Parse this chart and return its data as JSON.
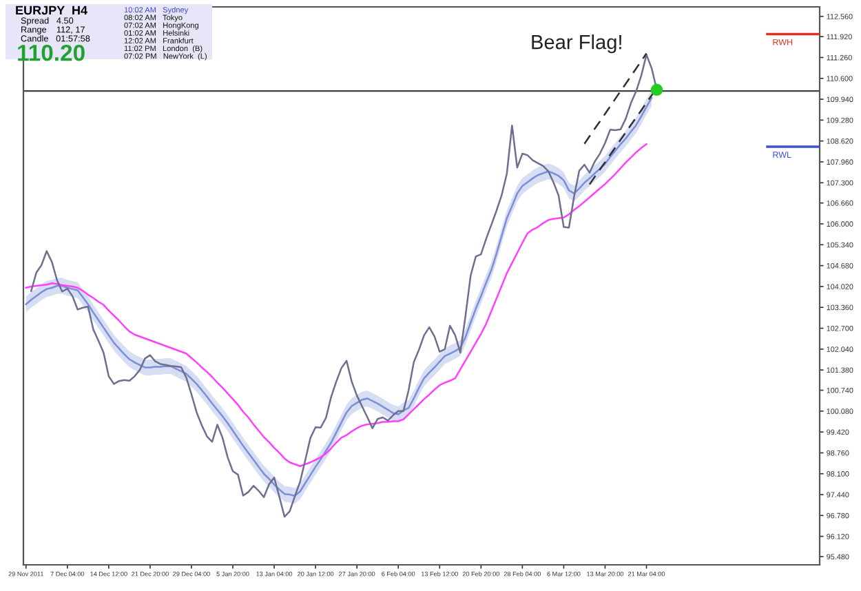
{
  "chart_data": {
    "type": "line",
    "title": "EURJPY  H4",
    "annotations": [
      "Spread   4.50",
      "Range    112, 17",
      "Candle   01:57:58",
      "110.20",
      "10:02 AM   Sydney",
      "08:02 AM   Tokyo",
      "07:02 AM   HongKong",
      "01:02 AM   Helsinki",
      "12:02 AM   Frankfurt",
      "11:02 PM   London  (B)",
      "07:02 PM   NewYork  (L)",
      "Bear Flag!"
    ],
    "categories": [
      "29 Nov 2011",
      null,
      null,
      null,
      null,
      null,
      null,
      null,
      "7 Dec 04:00",
      null,
      null,
      null,
      null,
      null,
      null,
      null,
      "14 Dec 12:00",
      null,
      null,
      null,
      null,
      null,
      null,
      null,
      "21 Dec 20:00",
      null,
      null,
      null,
      null,
      null,
      null,
      null,
      "29 Dec 04:00",
      null,
      null,
      null,
      null,
      null,
      null,
      null,
      "5 Jan 20:00",
      null,
      null,
      null,
      null,
      null,
      null,
      null,
      "13 Jan 04:00",
      null,
      null,
      null,
      null,
      null,
      null,
      null,
      "20 Jan 12:00",
      null,
      null,
      null,
      null,
      null,
      null,
      null,
      "27 Jan 20:00",
      null,
      null,
      null,
      null,
      null,
      null,
      null,
      "6 Feb 04:00",
      null,
      null,
      null,
      null,
      null,
      null,
      null,
      "13 Feb 12:00",
      null,
      null,
      null,
      null,
      null,
      null,
      null,
      "20 Feb 20:00",
      null,
      null,
      null,
      null,
      null,
      null,
      null,
      "28 Feb 04:00",
      null,
      null,
      null,
      null,
      null,
      null,
      null,
      "6 Mar 12:00",
      null,
      null,
      null,
      null,
      null,
      null,
      null,
      "13 Mar 20:00",
      null,
      null,
      null,
      null,
      null,
      null,
      null,
      "21 Mar 04:00",
      null,
      null,
      null,
      null,
      null,
      null,
      null,
      null,
      null,
      null,
      null,
      null,
      null,
      null,
      null,
      null,
      null,
      null,
      null,
      null,
      null,
      null,
      null,
      null,
      null,
      null,
      null,
      null,
      null,
      null,
      null,
      null,
      null
    ],
    "ylim": [
      95.22,
      112.86
    ],
    "yticks": [
      {
        "value": 95.48,
        "label": "95.480"
      },
      {
        "value": 96.12,
        "label": "96.120"
      },
      {
        "value": 96.78,
        "label": "96.780"
      },
      {
        "value": 97.44,
        "label": "97.440"
      },
      {
        "value": 98.1,
        "label": "98.100"
      },
      {
        "value": 98.76,
        "label": "98.760"
      },
      {
        "value": 99.42,
        "label": "99.420"
      },
      {
        "value": 100.08,
        "label": "100.080"
      },
      {
        "value": 100.74,
        "label": "100.740"
      },
      {
        "value": 101.38,
        "label": "101.380"
      },
      {
        "value": 102.04,
        "label": "102.040"
      },
      {
        "value": 102.7,
        "label": "102.700"
      },
      {
        "value": 103.36,
        "label": "103.360"
      },
      {
        "value": 104.02,
        "label": "104.020"
      },
      {
        "value": 104.68,
        "label": "104.680"
      },
      {
        "value": 105.34,
        "label": "105.340"
      },
      {
        "value": 106.0,
        "label": "106.000"
      },
      {
        "value": 106.66,
        "label": "106.660"
      },
      {
        "value": 107.3,
        "label": "107.300"
      },
      {
        "value": 107.96,
        "label": "107.960"
      },
      {
        "value": 108.62,
        "label": "108.620"
      },
      {
        "value": 109.28,
        "label": "109.280"
      },
      {
        "value": 109.94,
        "label": "109.940"
      },
      {
        "value": 110.6,
        "label": "110.600"
      },
      {
        "value": 111.26,
        "label": "111.260"
      },
      {
        "value": 111.92,
        "label": "111.920"
      },
      {
        "value": 112.56,
        "label": "112.560"
      }
    ],
    "grid": false,
    "series": [
      {
        "color": "#7b8fd8",
        "values": [
          103.46,
          103.6,
          103.72,
          103.84,
          103.94,
          103.98,
          104.04,
          104.04,
          103.98,
          103.94,
          103.9,
          103.68,
          103.46,
          103.2,
          102.96,
          102.72,
          102.48,
          102.24,
          102.06,
          101.88,
          101.72,
          101.62,
          101.54,
          101.46,
          101.46,
          101.48,
          101.48,
          101.5,
          101.5,
          101.42,
          101.34,
          101.26,
          101.1,
          100.94,
          100.74,
          100.54,
          100.32,
          100.12,
          99.92,
          99.7,
          99.46,
          99.22,
          98.98,
          98.76,
          98.54,
          98.32,
          98.1,
          97.94,
          97.76,
          97.6,
          97.46,
          97.44,
          97.4,
          97.54,
          97.8,
          98.06,
          98.32,
          98.56,
          98.82,
          99.08,
          99.4,
          99.72,
          100.04,
          100.24,
          100.34,
          100.44,
          100.48,
          100.4,
          100.32,
          100.22,
          100.12,
          100.02,
          99.98,
          100.1,
          100.18,
          100.48,
          100.82,
          101.12,
          101.3,
          101.46,
          101.64,
          101.82,
          101.9,
          101.98,
          102.08,
          102.42,
          102.88,
          103.32,
          103.72,
          104.14,
          104.54,
          105.06,
          105.62,
          106.18,
          106.56,
          106.96,
          107.2,
          107.32,
          107.44,
          107.54,
          107.6,
          107.66,
          107.6,
          107.52,
          107.38,
          107.06,
          106.96,
          107.12,
          107.3,
          107.44,
          107.6,
          107.74,
          107.9,
          108.12,
          108.32,
          108.52,
          108.7,
          108.92,
          109.12,
          109.4,
          109.7,
          109.98,
          null,
          null,
          null,
          null,
          null,
          null,
          null,
          null,
          null,
          null,
          null,
          null,
          null,
          null,
          null,
          null,
          null,
          null,
          null,
          null,
          null,
          null,
          null,
          null,
          null,
          null,
          null,
          null,
          null,
          null,
          null,
          null
        ],
        "lower": [
          103.21,
          103.35,
          103.47,
          103.59,
          103.69,
          103.73,
          103.79,
          103.79,
          103.73,
          103.69,
          103.65,
          103.43,
          103.21,
          102.95,
          102.71,
          102.47,
          102.23,
          101.99,
          101.81,
          101.63,
          101.47,
          101.37,
          101.29,
          101.21,
          101.21,
          101.23,
          101.23,
          101.25,
          101.25,
          101.17,
          101.09,
          101.01,
          100.85,
          100.69,
          100.49,
          100.29,
          100.07,
          99.87,
          99.67,
          99.45,
          99.21,
          98.97,
          98.73,
          98.51,
          98.29,
          98.07,
          97.85,
          97.69,
          97.51,
          97.35,
          97.21,
          97.19,
          97.15,
          97.29,
          97.55,
          97.81,
          98.07,
          98.31,
          98.57,
          98.83,
          99.15,
          99.47,
          99.79,
          99.99,
          100.09,
          100.19,
          100.23,
          100.15,
          100.07,
          99.97,
          99.87,
          99.77,
          99.73,
          99.85,
          99.93,
          100.23,
          100.57,
          100.87,
          101.05,
          101.21,
          101.39,
          101.57,
          101.65,
          101.73,
          101.83,
          102.17,
          102.63,
          103.07,
          103.47,
          103.89,
          104.29,
          104.81,
          105.37,
          105.93,
          106.31,
          106.71,
          106.95,
          107.07,
          107.19,
          107.29,
          107.35,
          107.41,
          107.35,
          107.27,
          107.13,
          106.81,
          106.71,
          106.87,
          107.05,
          107.19,
          107.35,
          107.49,
          107.65,
          107.87,
          108.07,
          108.27,
          108.45,
          108.67,
          108.87,
          109.15,
          109.45,
          109.73,
          null,
          null,
          null,
          null,
          null,
          null,
          null,
          null,
          null,
          null,
          null,
          null,
          null,
          null,
          null,
          null,
          null,
          null,
          null,
          null,
          null,
          null,
          null,
          null,
          null,
          null,
          null,
          null,
          null,
          null,
          null,
          null
        ],
        "upper": [
          103.71,
          103.85,
          103.97,
          104.09,
          104.19,
          104.23,
          104.29,
          104.29,
          104.23,
          104.19,
          104.15,
          103.93,
          103.71,
          103.45,
          103.21,
          102.97,
          102.73,
          102.49,
          102.31,
          102.13,
          101.97,
          101.87,
          101.79,
          101.71,
          101.71,
          101.73,
          101.73,
          101.75,
          101.75,
          101.67,
          101.59,
          101.51,
          101.35,
          101.19,
          100.99,
          100.79,
          100.57,
          100.37,
          100.17,
          99.95,
          99.71,
          99.47,
          99.23,
          99.01,
          98.79,
          98.57,
          98.35,
          98.19,
          98.01,
          97.85,
          97.71,
          97.69,
          97.65,
          97.79,
          98.05,
          98.31,
          98.57,
          98.81,
          99.07,
          99.33,
          99.65,
          99.97,
          100.29,
          100.49,
          100.59,
          100.69,
          100.73,
          100.65,
          100.57,
          100.47,
          100.37,
          100.27,
          100.23,
          100.35,
          100.43,
          100.73,
          101.07,
          101.37,
          101.55,
          101.71,
          101.89,
          102.07,
          102.15,
          102.23,
          102.33,
          102.67,
          103.13,
          103.57,
          103.97,
          104.39,
          104.79,
          105.31,
          105.87,
          106.43,
          106.81,
          107.21,
          107.45,
          107.57,
          107.69,
          107.79,
          107.85,
          107.91,
          107.85,
          107.77,
          107.63,
          107.31,
          107.21,
          107.37,
          107.55,
          107.69,
          107.85,
          107.99,
          108.15,
          108.37,
          108.57,
          108.77,
          108.95,
          109.17,
          109.37,
          109.65,
          109.95,
          110.23,
          null,
          null,
          null,
          null,
          null,
          null,
          null,
          null,
          null,
          null,
          null,
          null,
          null,
          null,
          null,
          null,
          null,
          null,
          null,
          null,
          null,
          null,
          null,
          null,
          null,
          null,
          null,
          null,
          null,
          null,
          null,
          null
        ]
      },
      {
        "color": "#ff40ff",
        "values": [
          103.98,
          104.02,
          104.04,
          104.06,
          104.08,
          104.12,
          104.1,
          104.06,
          104.04,
          104.02,
          103.98,
          103.88,
          103.76,
          103.66,
          103.54,
          103.44,
          103.26,
          103.1,
          102.94,
          102.76,
          102.6,
          102.5,
          102.44,
          102.38,
          102.32,
          102.26,
          102.2,
          102.14,
          102.08,
          102.02,
          101.96,
          101.9,
          101.76,
          101.62,
          101.46,
          101.32,
          101.16,
          100.98,
          100.82,
          100.64,
          100.46,
          100.28,
          100.06,
          99.88,
          99.66,
          99.46,
          99.26,
          99.1,
          98.92,
          98.76,
          98.58,
          98.46,
          98.4,
          98.34,
          98.4,
          98.46,
          98.54,
          98.62,
          98.74,
          98.9,
          99.08,
          99.24,
          99.32,
          99.44,
          99.54,
          99.62,
          99.66,
          99.68,
          99.7,
          99.74,
          99.74,
          99.76,
          99.76,
          99.82,
          99.98,
          100.14,
          100.3,
          100.46,
          100.6,
          100.76,
          100.9,
          100.98,
          101.04,
          101.12,
          101.4,
          101.68,
          101.96,
          102.24,
          102.52,
          102.84,
          103.24,
          103.64,
          104.04,
          104.44,
          104.76,
          105.08,
          105.4,
          105.7,
          105.82,
          105.9,
          106.02,
          106.12,
          106.16,
          106.18,
          106.2,
          106.3,
          106.44,
          106.56,
          106.7,
          106.84,
          106.98,
          107.12,
          107.26,
          107.42,
          107.58,
          107.76,
          107.94,
          108.1,
          108.26,
          108.4,
          108.52,
          null,
          null,
          null,
          null,
          null,
          null,
          null,
          null,
          null,
          null,
          null,
          null,
          null,
          null,
          null,
          null,
          null,
          null,
          null,
          null,
          null,
          null,
          null,
          null,
          null,
          null,
          null,
          null,
          null,
          null,
          null,
          null,
          null
        ]
      },
      {
        "color": "#6e6e90",
        "values": [
          null,
          103.88,
          104.46,
          104.7,
          105.14,
          104.8,
          104.22,
          103.86,
          103.95,
          103.71,
          103.29,
          103.35,
          103.39,
          102.67,
          102.31,
          101.93,
          101.18,
          100.94,
          101.03,
          101.06,
          101.04,
          101.18,
          101.38,
          101.74,
          101.85,
          101.65,
          101.57,
          101.54,
          101.51,
          101.49,
          101.47,
          101.14,
          100.61,
          100.04,
          99.63,
          99.28,
          99.11,
          99.65,
          99.24,
          98.62,
          98.18,
          98.07,
          97.41,
          97.52,
          97.72,
          97.56,
          97.36,
          97.76,
          97.98,
          97.37,
          96.74,
          96.91,
          97.39,
          97.84,
          98.52,
          99.23,
          99.57,
          99.56,
          99.86,
          100.52,
          101.01,
          101.44,
          101.67,
          101.01,
          100.57,
          100.23,
          99.89,
          99.54,
          99.83,
          99.88,
          99.78,
          99.95,
          100.08,
          100.08,
          100.74,
          101.63,
          102.02,
          102.48,
          102.73,
          102.44,
          101.96,
          102.04,
          102.78,
          102.48,
          101.93,
          103.09,
          104.37,
          104.97,
          105.04,
          105.53,
          105.97,
          106.42,
          106.91,
          107.59,
          109.11,
          107.78,
          108.22,
          108.17,
          108.01,
          107.92,
          107.83,
          107.67,
          107.32,
          106.9,
          105.9,
          105.88,
          106.86,
          107.68,
          107.87,
          107.62,
          107.97,
          108.22,
          108.56,
          108.98,
          108.96,
          108.99,
          109.33,
          109.82,
          110.19,
          110.69,
          111.35,
          110.92,
          110.24,
          null,
          null,
          null,
          null,
          null,
          null,
          null,
          null,
          null,
          null,
          null,
          null,
          null,
          null,
          null,
          null,
          null,
          null,
          null,
          null,
          null,
          null,
          null,
          null,
          null,
          null,
          null,
          null,
          null,
          null,
          null
        ]
      },
      {
        "color": "#303030",
        "line_style": "dashed",
        "values": [
          null,
          null,
          null,
          null,
          null,
          null,
          null,
          null,
          null,
          null,
          null,
          null,
          null,
          null,
          null,
          null,
          null,
          null,
          null,
          null,
          null,
          null,
          null,
          null,
          null,
          null,
          null,
          null,
          null,
          null,
          null,
          null,
          null,
          null,
          null,
          null,
          null,
          null,
          null,
          null,
          null,
          null,
          null,
          null,
          null,
          null,
          null,
          null,
          null,
          null,
          null,
          null,
          null,
          null,
          null,
          null,
          null,
          null,
          null,
          null,
          null,
          null,
          null,
          null,
          null,
          null,
          null,
          null,
          null,
          null,
          null,
          null,
          null,
          null,
          null,
          null,
          null,
          null,
          null,
          null,
          null,
          null,
          null,
          null,
          null,
          null,
          null,
          null,
          null,
          null,
          null,
          null,
          null,
          null,
          null,
          null,
          null,
          null,
          null,
          null,
          null,
          null,
          null,
          null,
          null,
          null,
          null,
          null,
          108.53,
          108.77,
          109.01,
          109.24,
          109.48,
          109.72,
          109.96,
          110.2,
          110.43,
          110.67,
          110.91,
          111.15,
          111.39,
          null,
          null,
          null,
          null,
          null,
          null,
          null,
          null,
          null,
          null,
          null,
          null,
          null,
          null,
          null,
          null,
          null,
          null,
          null,
          null,
          null,
          null,
          null,
          null,
          null,
          null,
          null,
          null,
          null,
          null,
          null,
          null,
          null
        ]
      },
      {
        "color": "#303030",
        "line_style": "dashed",
        "values": [
          null,
          null,
          null,
          null,
          null,
          null,
          null,
          null,
          null,
          null,
          null,
          null,
          null,
          null,
          null,
          null,
          null,
          null,
          null,
          null,
          null,
          null,
          null,
          null,
          null,
          null,
          null,
          null,
          null,
          null,
          null,
          null,
          null,
          null,
          null,
          null,
          null,
          null,
          null,
          null,
          null,
          null,
          null,
          null,
          null,
          null,
          null,
          null,
          null,
          null,
          null,
          null,
          null,
          null,
          null,
          null,
          null,
          null,
          null,
          null,
          null,
          null,
          null,
          null,
          null,
          null,
          null,
          null,
          null,
          null,
          null,
          null,
          null,
          null,
          null,
          null,
          null,
          null,
          null,
          null,
          null,
          null,
          null,
          null,
          null,
          null,
          null,
          null,
          null,
          null,
          null,
          null,
          null,
          null,
          null,
          null,
          null,
          null,
          null,
          null,
          null,
          null,
          null,
          null,
          null,
          null,
          null,
          null,
          null,
          107.25,
          107.49,
          107.72,
          107.95,
          108.19,
          108.42,
          108.66,
          108.89,
          109.13,
          109.36,
          109.59,
          109.83,
          110.06,
          110.3,
          null,
          null,
          null,
          null,
          null,
          null,
          null,
          null,
          null,
          null,
          null,
          null,
          null,
          null,
          null,
          null,
          null,
          null,
          null,
          null,
          null,
          null,
          null,
          null,
          null,
          null,
          null,
          null,
          null,
          null,
          null
        ]
      },
      {
        "type": "scatter",
        "color": "#22cc22",
        "marker": "circle",
        "values": [
          null,
          null,
          null,
          null,
          null,
          null,
          null,
          null,
          null,
          null,
          null,
          null,
          null,
          null,
          null,
          null,
          null,
          null,
          null,
          null,
          null,
          null,
          null,
          null,
          null,
          null,
          null,
          null,
          null,
          null,
          null,
          null,
          null,
          null,
          null,
          null,
          null,
          null,
          null,
          null,
          null,
          null,
          null,
          null,
          null,
          null,
          null,
          null,
          null,
          null,
          null,
          null,
          null,
          null,
          null,
          null,
          null,
          null,
          null,
          null,
          null,
          null,
          null,
          null,
          null,
          null,
          null,
          null,
          null,
          null,
          null,
          null,
          null,
          null,
          null,
          null,
          null,
          null,
          null,
          null,
          null,
          null,
          null,
          null,
          null,
          null,
          null,
          null,
          null,
          null,
          null,
          null,
          null,
          null,
          null,
          null,
          null,
          null,
          null,
          null,
          null,
          null,
          null,
          null,
          null,
          null,
          null,
          null,
          null,
          null,
          null,
          null,
          null,
          null,
          null,
          null,
          null,
          null,
          null,
          null,
          null,
          null,
          110.24,
          null,
          null,
          null,
          null,
          null,
          null,
          null,
          null,
          null,
          null,
          null,
          null,
          null,
          null,
          null,
          null,
          null,
          null,
          null,
          null,
          null,
          null,
          null,
          null,
          null,
          null,
          null,
          null,
          null,
          null,
          null
        ]
      }
    ],
    "ref_lines": [
      {
        "axis": "y",
        "value": 110.2,
        "color": "#404040"
      },
      {
        "axis": "y",
        "value": 112.0,
        "label": "RWH",
        "color": "#e03020"
      },
      {
        "axis": "y",
        "value": 108.44,
        "label": "RWL",
        "color": "#4050d0"
      }
    ]
  }
}
